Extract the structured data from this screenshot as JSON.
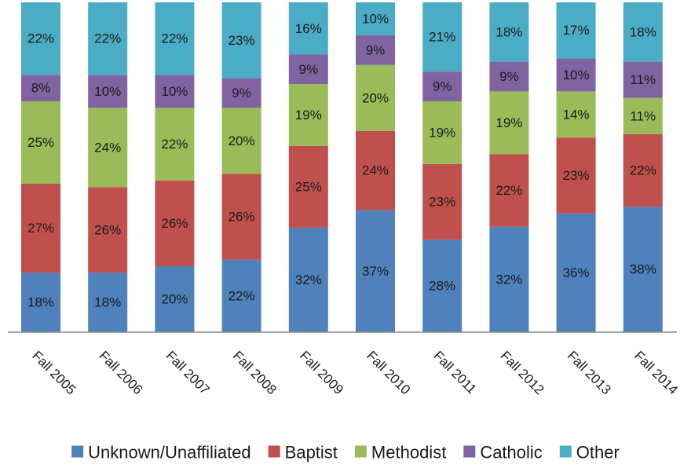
{
  "chart_data": {
    "type": "bar",
    "stacked": true,
    "percent_stacked": true,
    "categories": [
      "Fall 2005",
      "Fall 2006",
      "Fall 2007",
      "Fall 2008",
      "Fall 2009",
      "Fall 2010",
      "Fall 2011",
      "Fall 2012",
      "Fall 2013",
      "Fall 2014"
    ],
    "series": [
      {
        "name": "Unknown/Unaffiliated",
        "color": "#4F81BD",
        "values": [
          18,
          18,
          20,
          22,
          32,
          37,
          28,
          32,
          36,
          38
        ],
        "labels": [
          "18%",
          "18%",
          "20%",
          "22%",
          "32%",
          "37%",
          "28%",
          "32%",
          "36%",
          "38%"
        ]
      },
      {
        "name": "Baptist",
        "color": "#C0504D",
        "values": [
          27,
          26,
          26,
          26,
          25,
          24,
          23,
          22,
          23,
          22
        ],
        "labels": [
          "27%",
          "26%",
          "26%",
          "26%",
          "25%",
          "24%",
          "23%",
          "22%",
          "23%",
          "22%"
        ]
      },
      {
        "name": "Methodist",
        "color": "#9BBB59",
        "values": [
          25,
          24,
          22,
          20,
          19,
          20,
          19,
          19,
          14,
          11
        ],
        "labels": [
          "25%",
          "24%",
          "22%",
          "20%",
          "19%",
          "20%",
          "19%",
          "19%",
          "14%",
          "11%"
        ]
      },
      {
        "name": "Catholic",
        "color": "#8064A2",
        "values": [
          8,
          10,
          10,
          9,
          9,
          9,
          9,
          9,
          10,
          11
        ],
        "labels": [
          "8%",
          "10%",
          "10%",
          "9%",
          "9%",
          "9%",
          "9%",
          "9%",
          "10%",
          "11%"
        ]
      },
      {
        "name": "Other",
        "color": "#4BACC6",
        "values": [
          22,
          22,
          22,
          23,
          16,
          10,
          21,
          18,
          17,
          18
        ],
        "labels": [
          "22%",
          "22%",
          "22%",
          "23%",
          "16%",
          "10%",
          "21%",
          "18%",
          "17%",
          "18%"
        ]
      }
    ],
    "title": "",
    "xlabel": "",
    "ylabel": "",
    "y_axis_visible": false,
    "grid": false,
    "legend_position": "bottom"
  }
}
